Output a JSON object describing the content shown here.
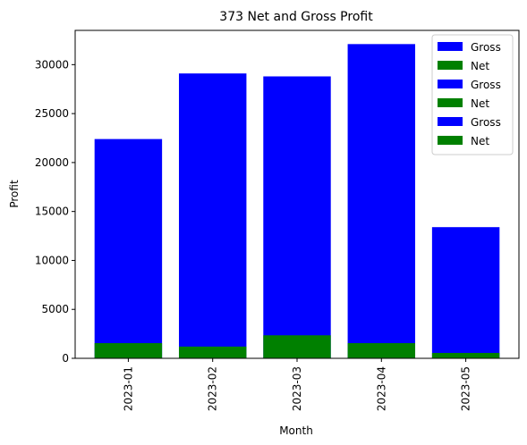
{
  "chart_data": {
    "type": "bar",
    "title": "373 Net and Gross Profit",
    "xlabel": "Month",
    "ylabel": "Profit",
    "categories": [
      "2023-01",
      "2023-02",
      "2023-03",
      "2023-04",
      "2023-05"
    ],
    "ylim": [
      0,
      33500
    ],
    "yticks": [
      0,
      5000,
      10000,
      15000,
      20000,
      25000,
      30000
    ],
    "grid": false,
    "legend_position": "top-right",
    "legend_entries": [
      "Gross",
      "Net",
      "Gross",
      "Net",
      "Gross",
      "Net"
    ],
    "series": [
      {
        "name": "Gross",
        "color": "#0000ff",
        "values": [
          22400,
          29100,
          28800,
          32100,
          13400
        ]
      },
      {
        "name": "Net",
        "color": "#008000",
        "values": [
          1550,
          1200,
          2350,
          1550,
          550
        ]
      }
    ]
  }
}
